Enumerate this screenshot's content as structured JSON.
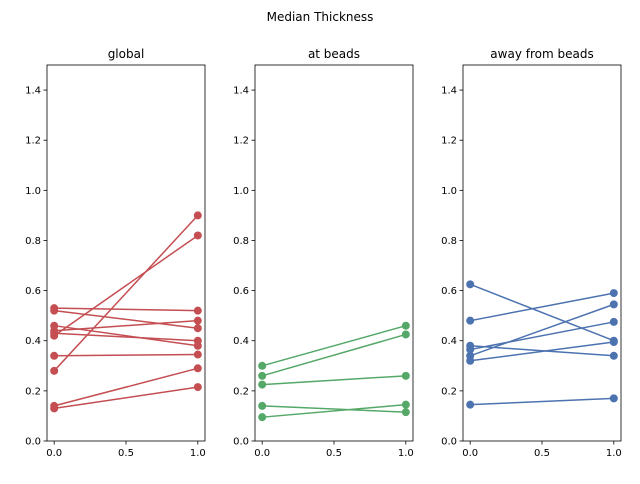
{
  "figure": {
    "suptitle": "Median Thickness"
  },
  "chart_data": [
    {
      "type": "line",
      "title": "global",
      "xlabel": "",
      "ylabel": "",
      "xlim": [
        -0.05,
        1.05
      ],
      "ylim": [
        0,
        1.5
      ],
      "xticks": [
        0.0,
        0.5,
        1.0
      ],
      "xtick_labels": [
        "0.0",
        "0.5",
        "1.0"
      ],
      "yticks": [
        0.0,
        0.2,
        0.4,
        0.6,
        0.8,
        1.0,
        1.2,
        1.4
      ],
      "ytick_labels": [
        "0.0",
        "0.2",
        "0.4",
        "0.6",
        "0.8",
        "1.0",
        "1.2",
        "1.4"
      ],
      "grid": false,
      "color": "#c44e52",
      "x": [
        0,
        1
      ],
      "series": [
        {
          "values": [
            0.53,
            0.52
          ]
        },
        {
          "values": [
            0.52,
            0.45
          ]
        },
        {
          "values": [
            0.46,
            0.38
          ]
        },
        {
          "values": [
            0.44,
            0.48
          ]
        },
        {
          "values": [
            0.43,
            0.4
          ]
        },
        {
          "values": [
            0.42,
            0.82
          ]
        },
        {
          "values": [
            0.34,
            0.345
          ]
        },
        {
          "values": [
            0.28,
            0.9
          ]
        },
        {
          "values": [
            0.14,
            0.29
          ]
        },
        {
          "values": [
            0.13,
            0.215
          ]
        }
      ]
    },
    {
      "type": "line",
      "title": "at beads",
      "xlabel": "",
      "ylabel": "",
      "xlim": [
        -0.05,
        1.05
      ],
      "ylim": [
        0,
        1.5
      ],
      "xticks": [
        0.0,
        0.5,
        1.0
      ],
      "xtick_labels": [
        "0.0",
        "0.5",
        "1.0"
      ],
      "yticks": [
        0.0,
        0.2,
        0.4,
        0.6,
        0.8,
        1.0,
        1.2,
        1.4
      ],
      "ytick_labels": [
        "0.0",
        "0.2",
        "0.4",
        "0.6",
        "0.8",
        "1.0",
        "1.2",
        "1.4"
      ],
      "grid": false,
      "color": "#55a868",
      "x": [
        0,
        1
      ],
      "series": [
        {
          "values": [
            0.3,
            0.46
          ]
        },
        {
          "values": [
            0.26,
            0.425
          ]
        },
        {
          "values": [
            0.225,
            0.26
          ]
        },
        {
          "values": [
            0.14,
            0.115
          ]
        },
        {
          "values": [
            0.095,
            0.145
          ]
        }
      ]
    },
    {
      "type": "line",
      "title": "away from beads",
      "xlabel": "",
      "ylabel": "",
      "xlim": [
        -0.05,
        1.05
      ],
      "ylim": [
        0,
        1.5
      ],
      "xticks": [
        0.0,
        0.5,
        1.0
      ],
      "xtick_labels": [
        "0.0",
        "0.5",
        "1.0"
      ],
      "yticks": [
        0.0,
        0.2,
        0.4,
        0.6,
        0.8,
        1.0,
        1.2,
        1.4
      ],
      "ytick_labels": [
        "0.0",
        "0.2",
        "0.4",
        "0.6",
        "0.8",
        "1.0",
        "1.2",
        "1.4"
      ],
      "grid": false,
      "color": "#4c72b0",
      "x": [
        0,
        1
      ],
      "series": [
        {
          "values": [
            0.625,
            0.4
          ]
        },
        {
          "values": [
            0.48,
            0.59
          ]
        },
        {
          "values": [
            0.38,
            0.34
          ]
        },
        {
          "values": [
            0.365,
            0.475
          ]
        },
        {
          "values": [
            0.34,
            0.545
          ]
        },
        {
          "values": [
            0.32,
            0.395
          ]
        },
        {
          "values": [
            0.145,
            0.17
          ]
        }
      ]
    }
  ]
}
